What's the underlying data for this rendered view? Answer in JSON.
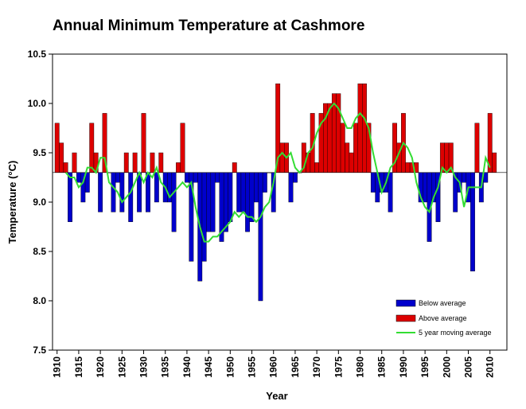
{
  "chart_data": {
    "type": "bar",
    "title": "Annual Minimum Temperature at Cashmore",
    "xlabel": "Year",
    "ylabel": "Temperature (°C)",
    "ylim": [
      7.5,
      10.5
    ],
    "y_ticks": [
      "7.5",
      "8.0",
      "8.5",
      "9.0",
      "9.5",
      "10.0",
      "10.5"
    ],
    "x_ticks": [
      "1910",
      "1915",
      "1920",
      "1925",
      "1930",
      "1935",
      "1940",
      "1945",
      "1950",
      "1955",
      "1960",
      "1965",
      "1970",
      "1975",
      "1980",
      "1985",
      "1990",
      "1995",
      "2000",
      "2005",
      "2010"
    ],
    "baseline": 9.3,
    "start_year": 1910,
    "years": [
      1910,
      1911,
      1912,
      1913,
      1914,
      1915,
      1916,
      1917,
      1918,
      1919,
      1920,
      1921,
      1922,
      1923,
      1924,
      1925,
      1926,
      1927,
      1928,
      1929,
      1930,
      1931,
      1932,
      1933,
      1934,
      1935,
      1936,
      1937,
      1938,
      1939,
      1940,
      1941,
      1942,
      1943,
      1944,
      1945,
      1946,
      1947,
      1948,
      1949,
      1950,
      1951,
      1952,
      1953,
      1954,
      1955,
      1956,
      1957,
      1958,
      1959,
      1960,
      1961,
      1962,
      1963,
      1964,
      1965,
      1966,
      1967,
      1968,
      1969,
      1970,
      1971,
      1972,
      1973,
      1974,
      1975,
      1976,
      1977,
      1978,
      1979,
      1980,
      1981,
      1982,
      1983,
      1984,
      1985,
      1986,
      1987,
      1988,
      1989,
      1990,
      1991,
      1992,
      1993,
      1994,
      1995,
      1996,
      1997,
      1998,
      1999,
      2000,
      2001,
      2002,
      2003,
      2004,
      2005,
      2006,
      2007,
      2008,
      2009,
      2010,
      2011
    ],
    "values": [
      9.8,
      9.6,
      9.4,
      8.8,
      9.5,
      9.2,
      9.0,
      9.1,
      9.8,
      9.5,
      8.9,
      9.9,
      9.3,
      8.9,
      9.2,
      8.9,
      9.5,
      8.8,
      9.5,
      8.9,
      9.9,
      8.9,
      9.5,
      9.0,
      9.5,
      9.0,
      9.0,
      8.7,
      9.4,
      9.8,
      9.2,
      8.4,
      9.2,
      8.2,
      8.4,
      8.7,
      8.7,
      9.2,
      8.6,
      8.7,
      8.8,
      9.4,
      8.9,
      8.9,
      8.7,
      8.8,
      9.0,
      8.0,
      9.1,
      9.3,
      8.9,
      10.2,
      9.6,
      9.6,
      9.0,
      9.2,
      9.3,
      9.6,
      9.5,
      9.9,
      9.4,
      9.9,
      10.0,
      10.0,
      10.1,
      10.1,
      9.8,
      9.6,
      9.5,
      9.8,
      10.2,
      10.2,
      9.8,
      9.1,
      9.0,
      9.1,
      9.1,
      8.9,
      9.8,
      9.6,
      9.9,
      9.4,
      9.4,
      9.4,
      9.0,
      9.0,
      8.6,
      9.0,
      8.8,
      9.6,
      9.6,
      9.6,
      8.9,
      9.1,
      9.2,
      9.0,
      8.3,
      9.8,
      9.0,
      9.2,
      9.9,
      9.5
    ],
    "moving_average_years": [
      1912,
      1913,
      1914,
      1915,
      1916,
      1917,
      1918,
      1919,
      1920,
      1921,
      1922,
      1923,
      1924,
      1925,
      1926,
      1927,
      1928,
      1929,
      1930,
      1931,
      1932,
      1933,
      1934,
      1935,
      1936,
      1937,
      1938,
      1939,
      1940,
      1941,
      1942,
      1943,
      1944,
      1945,
      1946,
      1947,
      1948,
      1949,
      1950,
      1951,
      1952,
      1953,
      1954,
      1955,
      1956,
      1957,
      1958,
      1959,
      1960,
      1961,
      1962,
      1963,
      1964,
      1965,
      1966,
      1967,
      1968,
      1969,
      1970,
      1971,
      1972,
      1973,
      1974,
      1975,
      1976,
      1977,
      1978,
      1979,
      1980,
      1981,
      1982,
      1983,
      1984,
      1985,
      1986,
      1987,
      1988,
      1989,
      1990,
      1991,
      1992,
      1993,
      1994,
      1995,
      1996,
      1997,
      1998,
      1999,
      2000,
      2001,
      2002,
      2003,
      2004,
      2005,
      2006,
      2007,
      2008,
      2009,
      2010
    ],
    "moving_average": [
      9.3,
      9.25,
      9.25,
      9.15,
      9.2,
      9.35,
      9.35,
      9.3,
      9.45,
      9.45,
      9.2,
      9.15,
      9.1,
      9.0,
      9.05,
      9.1,
      9.2,
      9.3,
      9.2,
      9.3,
      9.25,
      9.35,
      9.2,
      9.15,
      9.05,
      9.1,
      9.15,
      9.2,
      9.15,
      9.2,
      8.95,
      8.75,
      8.6,
      8.6,
      8.65,
      8.65,
      8.7,
      8.75,
      8.8,
      8.9,
      8.85,
      8.9,
      8.85,
      8.85,
      8.8,
      8.85,
      8.95,
      9.0,
      9.2,
      9.45,
      9.5,
      9.45,
      9.5,
      9.35,
      9.3,
      9.35,
      9.5,
      9.55,
      9.7,
      9.8,
      9.85,
      9.95,
      10.0,
      9.95,
      9.85,
      9.75,
      9.75,
      9.85,
      9.9,
      9.85,
      9.75,
      9.5,
      9.3,
      9.1,
      9.2,
      9.35,
      9.4,
      9.5,
      9.6,
      9.55,
      9.45,
      9.2,
      9.05,
      8.95,
      8.9,
      9.05,
      9.15,
      9.35,
      9.3,
      9.35,
      9.25,
      9.2,
      8.95,
      9.15,
      9.15,
      9.15,
      9.15,
      9.45,
      9.35
    ],
    "series": [
      {
        "name": "Below average",
        "color": "#0000cc"
      },
      {
        "name": "Above average",
        "color": "#dd0000"
      },
      {
        "name": "5 year moving average",
        "color": "#33dd33"
      }
    ],
    "grid": false,
    "legend_position": "bottom-right"
  }
}
